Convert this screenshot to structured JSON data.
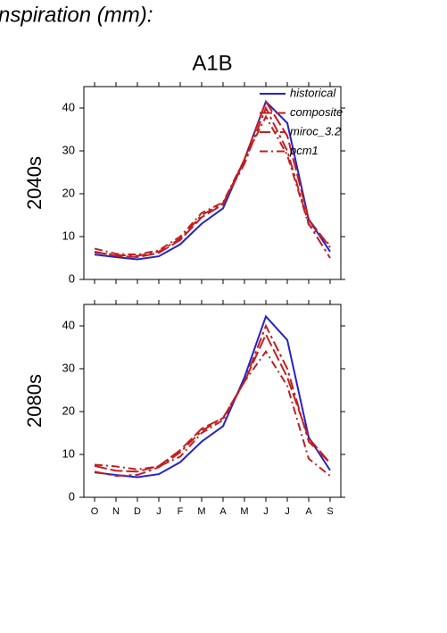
{
  "header": {
    "title": "nspiration (mm):"
  },
  "chart_data": [
    {
      "type": "line",
      "title": "A1B",
      "ylabel": "2040s",
      "series": [
        {
          "name": "historical",
          "color": "#2323c8",
          "dash": "",
          "values": [
            5.8,
            5.2,
            4.7,
            5.4,
            8.2,
            13,
            16.6,
            28,
            41.5,
            36.5,
            14,
            6.5
          ]
        },
        {
          "name": "composite",
          "color": "#c02020",
          "dash": "14 4",
          "values": [
            6.5,
            5.5,
            5.2,
            6.2,
            9.2,
            14.5,
            17.5,
            28,
            41.5,
            33.5,
            14,
            7.5
          ]
        },
        {
          "name": "miroc_3.2",
          "color": "#c02020",
          "dash": "12 4 3 4",
          "values": [
            6.3,
            5.7,
            5.5,
            6.5,
            9.5,
            15,
            17.8,
            27,
            40,
            30,
            13,
            5
          ]
        },
        {
          "name": "pcm1",
          "color": "#c02020",
          "dash": "9 4 2 4",
          "values": [
            7.2,
            6,
            5.8,
            6.8,
            10,
            15.5,
            18,
            28,
            38,
            29,
            12.8,
            8
          ]
        }
      ],
      "ylim": [
        0,
        45
      ],
      "yticks": [
        0,
        10,
        20,
        30,
        40
      ],
      "legend": "upper-right"
    },
    {
      "type": "line",
      "ylabel": "2080s",
      "categories": [
        "O",
        "N",
        "D",
        "J",
        "F",
        "M",
        "A",
        "M",
        "J",
        "J",
        "A",
        "S"
      ],
      "series": [
        {
          "color": "#2323c8",
          "dash": "",
          "values": [
            5.8,
            5.2,
            4.7,
            5.4,
            8.2,
            13,
            16.6,
            28,
            42.2,
            36.7,
            14,
            6.3
          ]
        },
        {
          "color": "#c02020",
          "dash": "14 4",
          "values": [
            7.3,
            6.2,
            6,
            7.3,
            11,
            16,
            18.5,
            27,
            38,
            28,
            13.8,
            8
          ]
        },
        {
          "color": "#c02020",
          "dash": "12 4 3 4",
          "values": [
            6,
            5,
            5.2,
            7,
            10.5,
            15.5,
            18.5,
            27,
            40,
            30,
            13,
            8
          ]
        },
        {
          "color": "#c02020",
          "dash": "9 4 2 4",
          "values": [
            7.6,
            7.2,
            6.5,
            7.2,
            9.5,
            15,
            18,
            27,
            34,
            26,
            9,
            5
          ]
        }
      ],
      "ylim": [
        0,
        45
      ],
      "yticks": [
        0,
        10,
        20,
        30,
        40
      ]
    }
  ]
}
